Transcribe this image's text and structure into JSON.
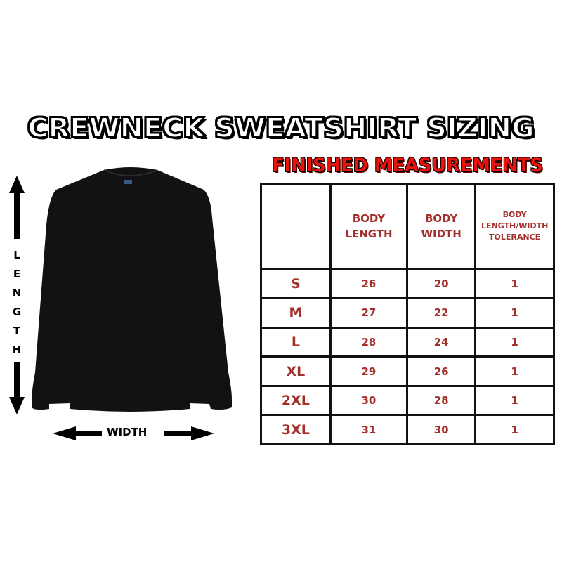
{
  "title": "CREWNECK SWEATSHIRT SIZING",
  "subtitle": "FINISHED MEASUREMENTS",
  "diagram": {
    "length_label": [
      "L",
      "E",
      "N",
      "G",
      "T",
      "H"
    ],
    "width_label": "WIDTH",
    "garment_color": "#111111"
  },
  "table": {
    "headers": [
      "",
      "BODY LENGTH",
      "BODY WIDTH",
      "BODY LENGTH/WIDTH TOLERANCE"
    ],
    "header_lines": [
      [],
      [
        "BODY",
        "LENGTH"
      ],
      [
        "BODY",
        "WIDTH"
      ],
      [
        "BODY",
        "LENGTH/WIDTH",
        "TOLERANCE"
      ]
    ],
    "rows": [
      {
        "size": "S",
        "length": "26",
        "width": "20",
        "tolerance": "1"
      },
      {
        "size": "M",
        "length": "27",
        "width": "22",
        "tolerance": "1"
      },
      {
        "size": "L",
        "length": "28",
        "width": "24",
        "tolerance": "1"
      },
      {
        "size": "XL",
        "length": "29",
        "width": "26",
        "tolerance": "1"
      },
      {
        "size": "2XL",
        "length": "30",
        "width": "28",
        "tolerance": "1"
      },
      {
        "size": "3XL",
        "length": "31",
        "width": "30",
        "tolerance": "1"
      }
    ]
  },
  "colors": {
    "table_text": "#a3302c",
    "subtitle": "#e8140c"
  }
}
